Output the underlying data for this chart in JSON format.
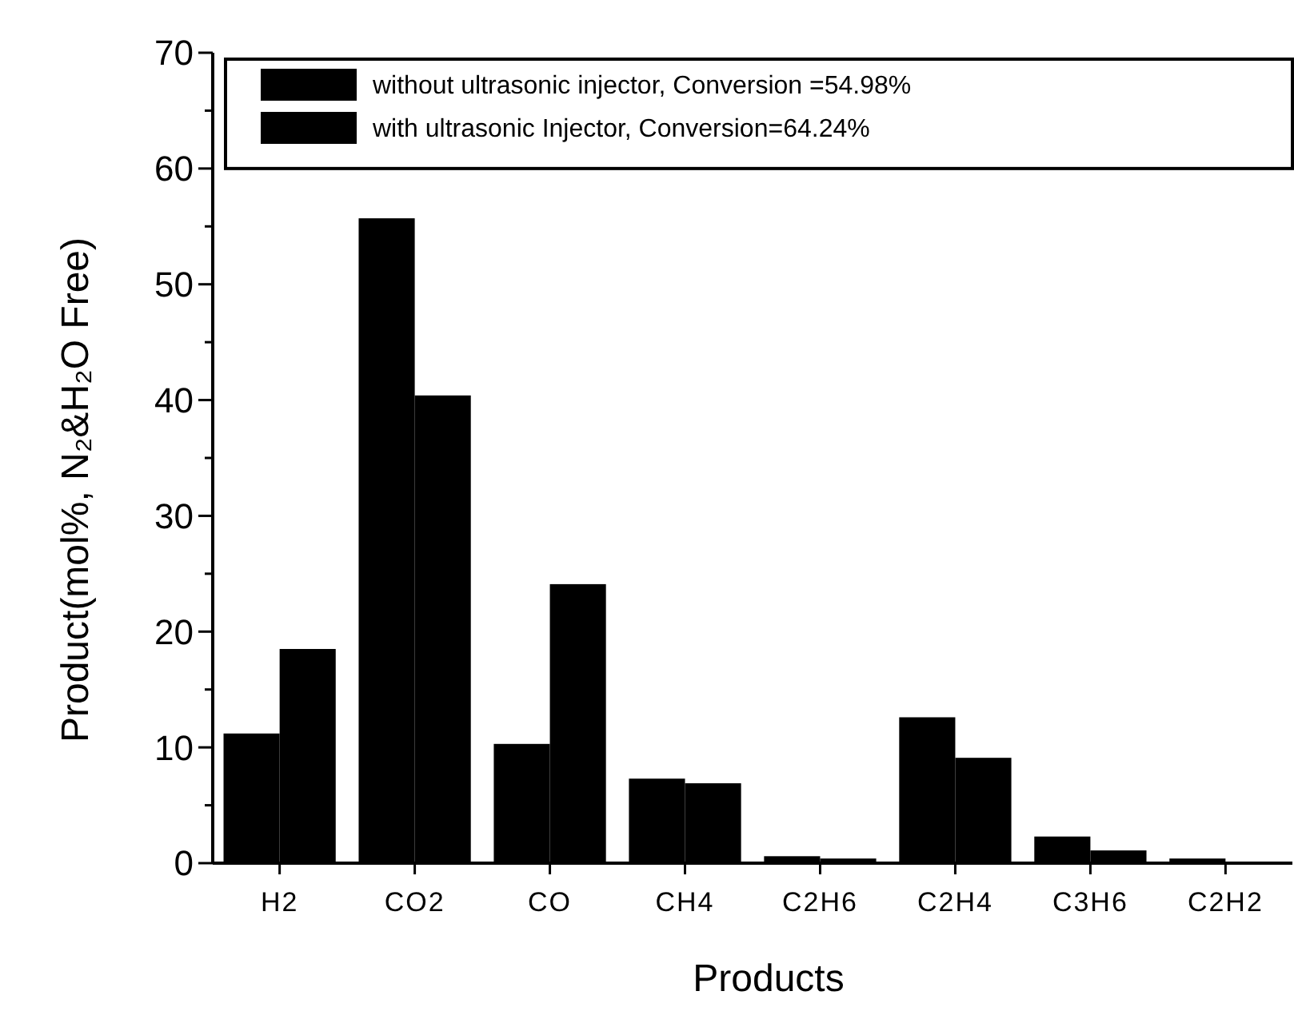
{
  "chart_data": {
    "type": "bar",
    "xlabel": "Products",
    "ylabel": "Product(mol%, N₂&H₂O Free)",
    "categories": [
      "H2",
      "CO2",
      "CO",
      "CH4",
      "C2H6",
      "C2H4",
      "C3H6",
      "C2H2"
    ],
    "series": [
      {
        "name": "without ultrasonic injector, Conversion =54.98%",
        "color": "#000000",
        "values": [
          11.2,
          55.7,
          10.3,
          7.3,
          0.6,
          12.6,
          2.3,
          0.4
        ]
      },
      {
        "name": "with ultrasonic Injector, Conversion=64.24%",
        "color": "#000000",
        "values": [
          18.5,
          40.4,
          24.1,
          6.9,
          0.4,
          9.1,
          1.1,
          0.1
        ]
      }
    ],
    "ylim": [
      0,
      70
    ],
    "yticks": [
      0,
      {
        "value": 5,
        "label": null
      },
      10,
      {
        "value": 15,
        "label": null
      },
      20,
      {
        "value": 25,
        "label": null
      },
      30,
      {
        "value": 35,
        "label": null
      },
      40,
      {
        "value": 45,
        "label": null
      },
      50,
      {
        "value": 55,
        "label": null
      },
      60,
      {
        "value": 65,
        "label": null
      },
      70
    ],
    "legend": "top",
    "grid": false
  }
}
